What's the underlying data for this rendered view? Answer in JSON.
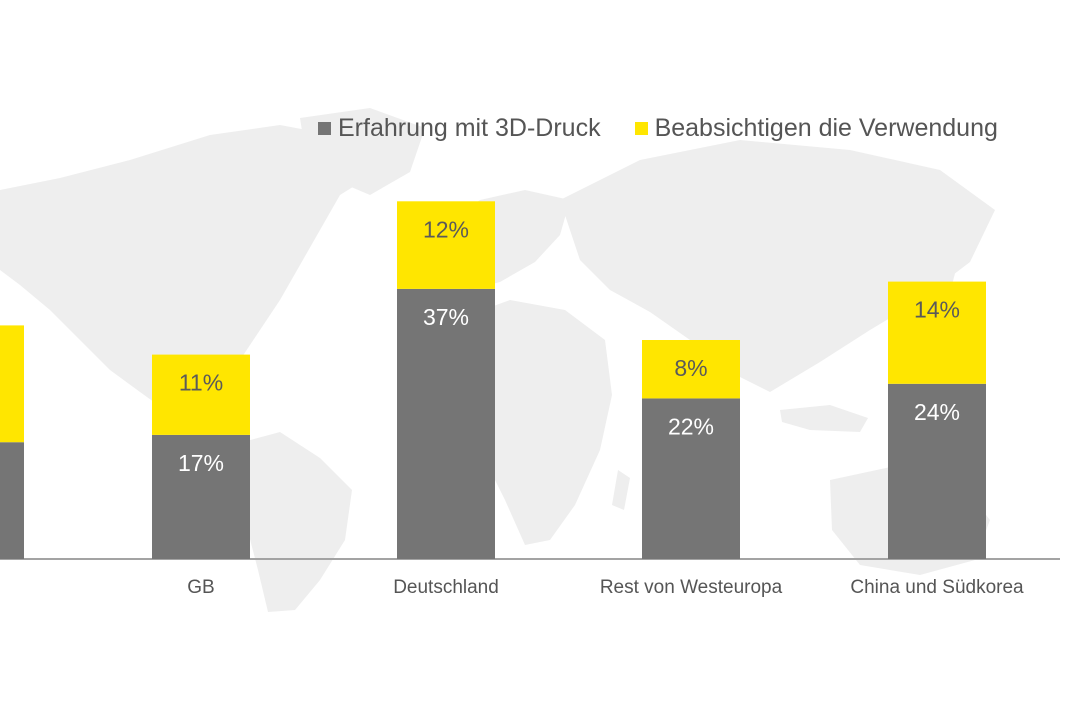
{
  "chart_data": {
    "type": "bar",
    "stacked": true,
    "categories": [
      "",
      "GB",
      "Deutschland",
      "Rest von Westeuropa",
      "China und Südkorea"
    ],
    "series": [
      {
        "name": "Erfahrung mit 3D-Druck",
        "color": "#757575",
        "values": [
          null,
          17,
          37,
          22,
          24
        ]
      },
      {
        "name": "Beabsichtigen die Verwendung",
        "color": "#ffe600",
        "values": [
          null,
          11,
          12,
          8,
          14
        ]
      }
    ],
    "data_labels": [
      [
        "",
        "17%",
        "37%",
        "22%",
        "24%"
      ],
      [
        "",
        "11%",
        "12%",
        "8%",
        "14%"
      ]
    ],
    "partial_first_bar": {
      "lower": 16,
      "upper": 16
    },
    "title": "",
    "xlabel": "",
    "ylabel": "",
    "ylim": [
      0,
      55
    ],
    "grid": false,
    "legend_position": "top-right",
    "background": "world-map"
  }
}
